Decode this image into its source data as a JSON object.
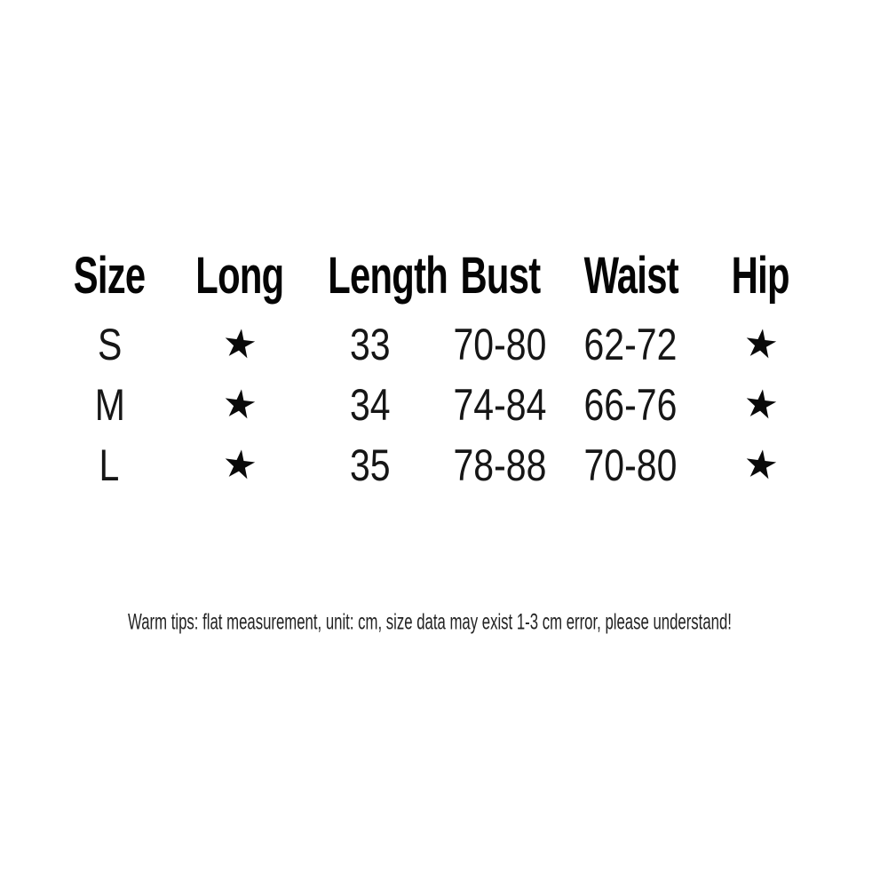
{
  "page": {
    "background_color": "#ffffff",
    "text_color": "#111111"
  },
  "chart_data": {
    "type": "table",
    "title": "",
    "columns": [
      "Size",
      "Long",
      "Length",
      "Bust",
      "Waist",
      "Hip"
    ],
    "rows": [
      [
        "S",
        "★",
        "33",
        "70-80",
        "62-72",
        "★"
      ],
      [
        "M",
        "★",
        "34",
        "74-84",
        "66-76",
        "★"
      ],
      [
        "L",
        "★",
        "35",
        "78-88",
        "70-80",
        "★"
      ]
    ],
    "star_symbol": "★",
    "unit": "cm",
    "note": "Warm tips: flat measurement, unit: cm, size data may exist 1-3 cm error, please understand!"
  }
}
